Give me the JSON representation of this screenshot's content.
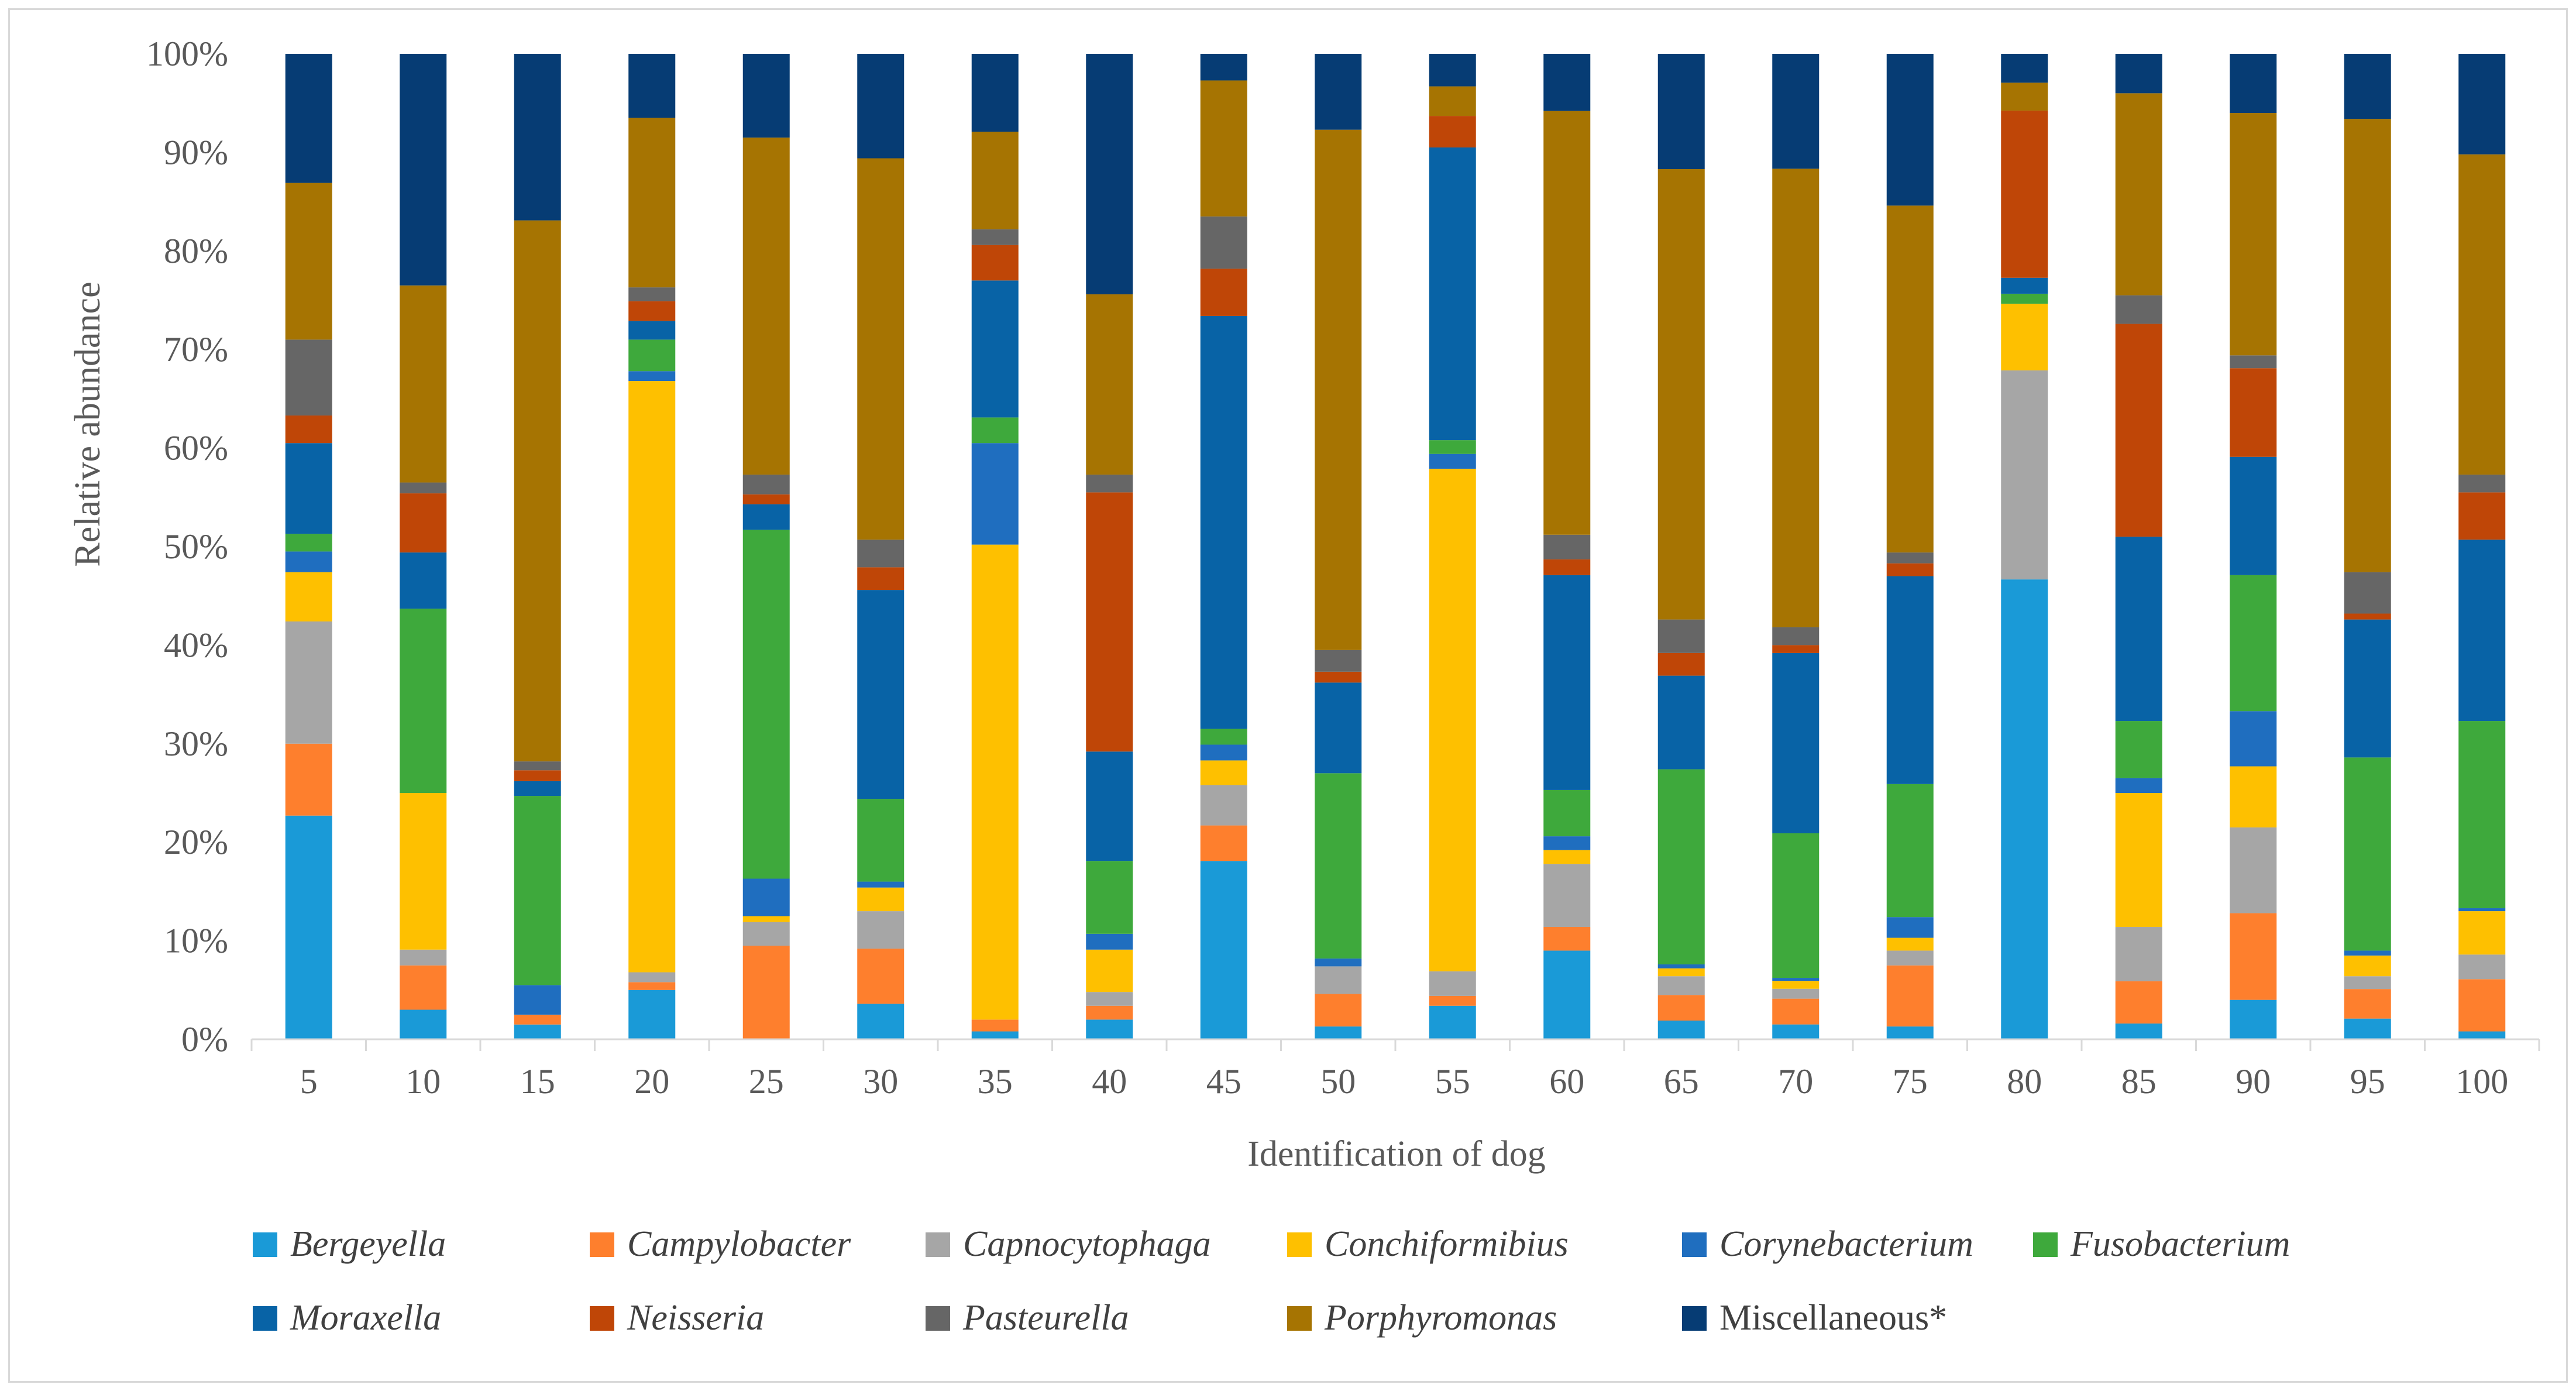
{
  "chart_data": {
    "type": "bar",
    "stacked": true,
    "title": "",
    "xlabel": "Identification  of  dog",
    "ylabel": "Relative  abundance",
    "ylim": [
      0,
      100
    ],
    "y_ticks": [
      "0%",
      "10%",
      "20%",
      "30%",
      "40%",
      "50%",
      "60%",
      "70%",
      "80%",
      "90%",
      "100%"
    ],
    "grid": false,
    "legend_position": "bottom",
    "categories": [
      "5",
      "10",
      "15",
      "20",
      "25",
      "30",
      "35",
      "40",
      "45",
      "50",
      "55",
      "60",
      "65",
      "70",
      "75",
      "80",
      "85",
      "90",
      "95",
      "100"
    ],
    "series": [
      {
        "name": "Bergeyella",
        "italic": true,
        "color": "#1a9ad7",
        "values": [
          22.7,
          3.0,
          1.5,
          5.0,
          0,
          3.6,
          0.8,
          2.0,
          18.1,
          1.3,
          3.4,
          9.0,
          1.9,
          1.5,
          1.3,
          46.2,
          1.6,
          4.0,
          2.1,
          0.8
        ]
      },
      {
        "name": "Campylobacter",
        "italic": true,
        "color": "#fe7f2d",
        "values": [
          7.3,
          4.5,
          1.0,
          0.8,
          9.5,
          5.6,
          1.2,
          1.4,
          3.6,
          3.3,
          1.0,
          2.4,
          2.6,
          2.6,
          6.2,
          0,
          4.3,
          8.8,
          3.0,
          5.3
        ]
      },
      {
        "name": "Capnocytophaga",
        "italic": true,
        "color": "#a6a6a6",
        "values": [
          12.4,
          1.6,
          0,
          1.0,
          2.4,
          3.8,
          0,
          1.4,
          4.1,
          2.8,
          2.5,
          6.4,
          1.9,
          1.0,
          1.5,
          21.0,
          5.5,
          8.7,
          1.3,
          2.5
        ]
      },
      {
        "name": "Conchiformibius",
        "italic": true,
        "color": "#fec000",
        "values": [
          5.0,
          15.9,
          0,
          60.0,
          0.6,
          2.4,
          48.2,
          4.3,
          2.5,
          0,
          51.0,
          1.4,
          0.8,
          0.8,
          1.3,
          6.7,
          13.6,
          6.2,
          2.1,
          4.4
        ]
      },
      {
        "name": "Corynebacterium",
        "italic": true,
        "color": "#1f6ebf",
        "values": [
          2.1,
          0,
          3.0,
          1.0,
          3.8,
          0.6,
          10.3,
          1.6,
          1.6,
          0.8,
          1.5,
          1.4,
          0.4,
          0.3,
          2.1,
          0,
          1.5,
          5.6,
          0.5,
          0.3
        ]
      },
      {
        "name": "Fusobacterium",
        "italic": true,
        "color": "#3ea93c",
        "values": [
          1.8,
          18.7,
          19.2,
          3.2,
          35.4,
          8.4,
          2.6,
          7.4,
          1.6,
          18.8,
          1.4,
          4.7,
          19.8,
          14.6,
          13.5,
          1.0,
          5.8,
          13.8,
          19.6,
          19.0
        ]
      },
      {
        "name": "Moraxella",
        "italic": true,
        "color": "#0863a6",
        "values": [
          9.2,
          5.7,
          1.5,
          1.9,
          2.6,
          21.2,
          13.9,
          11.1,
          41.9,
          9.2,
          29.7,
          21.8,
          9.5,
          18.2,
          21.1,
          1.6,
          18.7,
          12.0,
          14.0,
          18.4
        ]
      },
      {
        "name": "Neisseria",
        "italic": true,
        "color": "#bf4607",
        "values": [
          2.8,
          6.0,
          1.1,
          2.0,
          1.0,
          2.3,
          3.6,
          26.3,
          4.8,
          1.1,
          3.2,
          1.6,
          2.3,
          0.8,
          1.3,
          16.8,
          21.6,
          9.0,
          0.6,
          4.8
        ]
      },
      {
        "name": "Pasteurella",
        "italic": true,
        "color": "#666666",
        "values": [
          7.7,
          1.1,
          0.9,
          1.4,
          2.0,
          2.8,
          1.6,
          1.8,
          5.3,
          2.2,
          0,
          2.5,
          3.4,
          1.8,
          1.1,
          0,
          2.9,
          1.3,
          4.2,
          1.8
        ]
      },
      {
        "name": "Porphyromonas",
        "italic": true,
        "color": "#a67402",
        "values": [
          15.9,
          20.0,
          54.9,
          17.2,
          34.2,
          38.7,
          9.9,
          18.3,
          13.8,
          52.8,
          3.0,
          43.0,
          45.7,
          46.3,
          35.2,
          2.8,
          20.5,
          24.6,
          46.0,
          32.5
        ]
      },
      {
        "name": "Miscellaneous*",
        "italic": false,
        "color": "#063c74",
        "values": [
          13.1,
          23.5,
          16.9,
          6.5,
          8.5,
          10.6,
          7.9,
          24.4,
          2.7,
          7.7,
          3.3,
          5.8,
          11.7,
          11.6,
          15.4,
          2.9,
          4.0,
          6.0,
          6.6,
          10.2
        ]
      }
    ]
  }
}
